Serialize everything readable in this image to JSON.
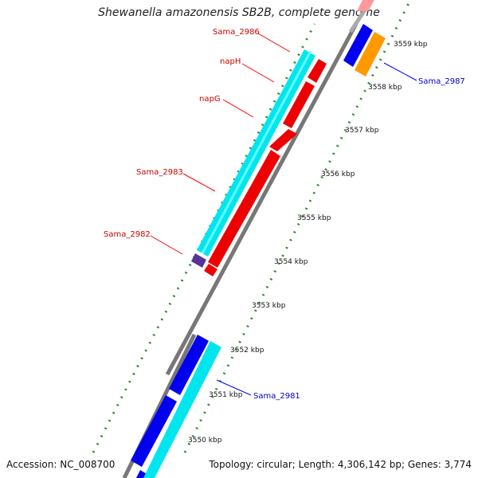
{
  "title": "Shewanella amazonensis SB2B, complete genome",
  "accession_text": "Accession: NC_008700",
  "summary_text": "Topology: circular; Length: 4,306,142 bp; Genes: 3,774",
  "ticks": [
    "3550 kbp",
    "3551 kbp",
    "3552 kbp",
    "3553 kbp",
    "3554 kbp",
    "3555 kbp",
    "3556 kbp",
    "3557 kbp",
    "3558 kbp",
    "3559 kbp"
  ],
  "gene_labels": {
    "sama2986": "Sama_2986",
    "napH": "napH",
    "napG": "napG",
    "sama2983": "Sama_2983",
    "sama2982": "Sama_2982",
    "sama2987": "Sama_2987",
    "sama2981": "Sama_2981"
  },
  "colors": {
    "forward_label": "#cc0000",
    "reverse_label": "#0000cc",
    "red_gene": "#ff0000",
    "cyan_gene": "#00e5ee",
    "blue_gene": "#0000ee",
    "orange_gene": "#ff9900",
    "purple_gene": "#553399",
    "backbone": "#888888",
    "tick_green": "#228b22"
  }
}
